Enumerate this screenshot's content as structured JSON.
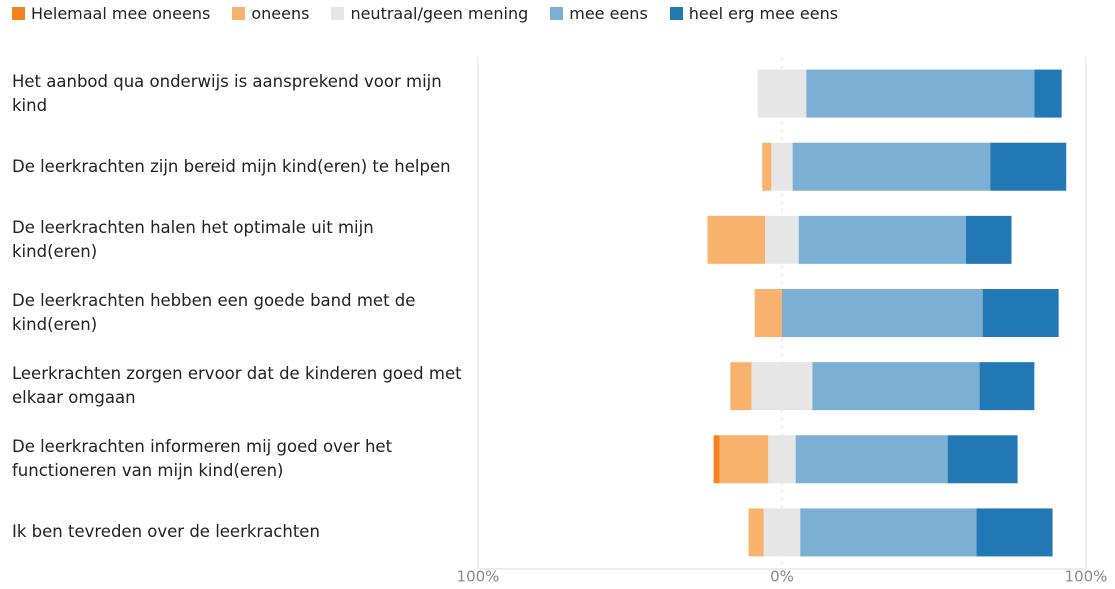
{
  "chart_data": {
    "type": "diverging_bar",
    "categories": [
      "Het aanbod qua onderwijs is aansprekend voor mijn kind",
      "De leerkrachten zijn bereid mijn kind(eren) te helpen",
      "De leerkrachten halen het optimale uit mijn kind(eren)",
      "De leerkrachten hebben een goede band met de kind(eren)",
      "Leerkrachten zorgen ervoor dat de kinderen goed met elkaar omgaan",
      "De leerkrachten informeren mij goed over het functioneren van mijn kind(eren)",
      "Ik ben tevreden over de leerkrachten"
    ],
    "series": [
      {
        "name": "Helemaal mee oneens",
        "color": "#f58220",
        "values": [
          0,
          0,
          0,
          0,
          0,
          2,
          0
        ]
      },
      {
        "name": "oneens",
        "color": "#f9b26e",
        "values": [
          0,
          3,
          19,
          9,
          7,
          16,
          5
        ]
      },
      {
        "name": "neutraal/geen mening",
        "color": "#e6e6e6",
        "values": [
          16,
          7,
          11,
          0,
          20,
          9,
          12
        ]
      },
      {
        "name": "mee eens",
        "color": "#7bafd4",
        "values": [
          75,
          65,
          55,
          66,
          55,
          50,
          58
        ]
      },
      {
        "name": "heel erg mee eens",
        "color": "#2277b5",
        "values": [
          9,
          25,
          15,
          25,
          18,
          23,
          25
        ]
      }
    ],
    "xlim": [
      -100,
      100
    ],
    "xticks": [
      {
        "value": -100,
        "label": "100%"
      },
      {
        "value": 0,
        "label": "0%"
      },
      {
        "value": 100,
        "label": "100%"
      }
    ],
    "grid": true
  }
}
